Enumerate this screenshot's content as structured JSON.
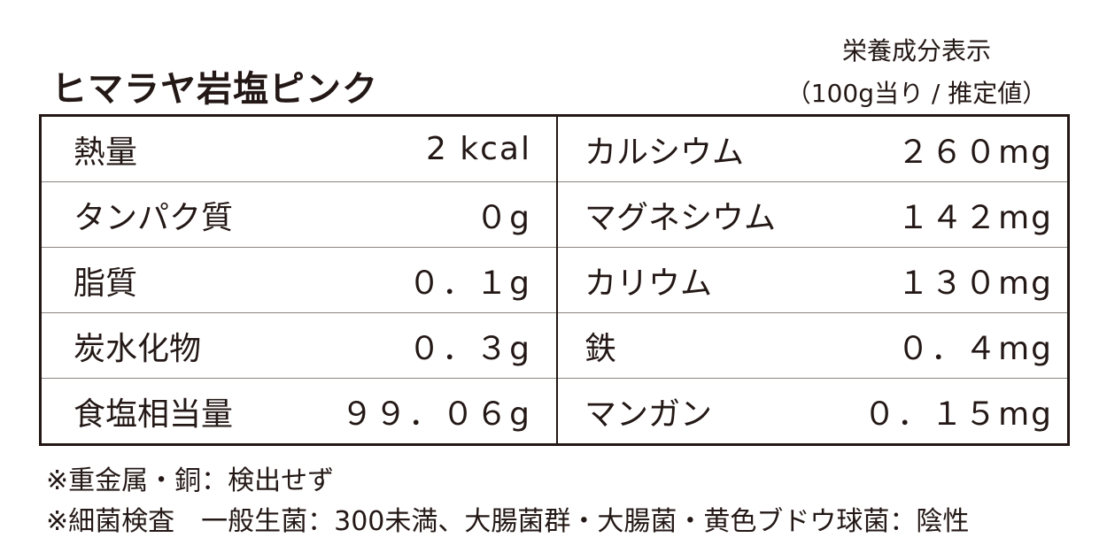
{
  "title": "ヒマラヤ岩塩ピンク",
  "heading": "栄養成分表示",
  "basis": "（100g当り / 推定値）",
  "left_rows": [
    {
      "label": "熱量",
      "value": "2 kcal"
    },
    {
      "label": "タンパク質",
      "value": "０g"
    },
    {
      "label": "脂質",
      "value": "０．１g"
    },
    {
      "label": "炭水化物",
      "value": "０．３g"
    },
    {
      "label": "食塩相当量",
      "value": "９９．０６g"
    }
  ],
  "right_rows": [
    {
      "label": "カルシウム",
      "value": "２６０mg"
    },
    {
      "label": "マグネシウム",
      "value": "１４２mg"
    },
    {
      "label": "カリウム",
      "value": "１３０mg"
    },
    {
      "label": "鉄",
      "value": "０．４mg"
    },
    {
      "label": "マンガン",
      "value": "０．１５mg"
    }
  ],
  "notes": [
    "※重金属・銅：検出せず",
    "※細菌検査　一般生菌：300未満、大腸菌群・大腸菌・黄色ブドウ球菌：陰性"
  ]
}
